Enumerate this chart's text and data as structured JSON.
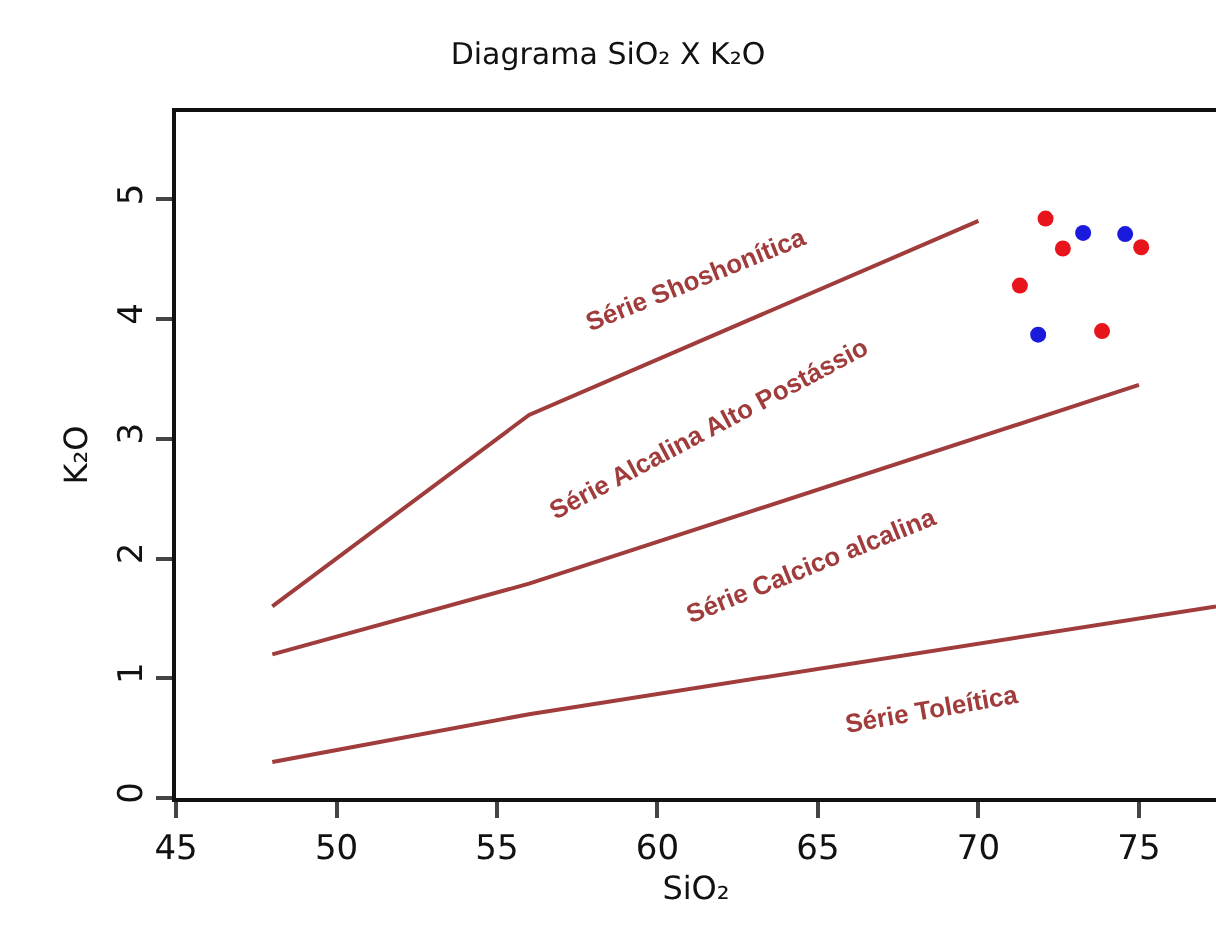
{
  "chart_data": {
    "type": "scatter",
    "title": "Diagrama SiO₂ X K₂O",
    "xlabel": "SiO₂",
    "ylabel": "K₂O",
    "xlim": [
      45,
      77.4
    ],
    "ylim": [
      0,
      5.73
    ],
    "xticks": [
      45,
      50,
      55,
      60,
      65,
      70,
      75
    ],
    "yticks": [
      0,
      1,
      2,
      3,
      4,
      5
    ],
    "grid": false,
    "legend": false,
    "series": [
      {
        "type": "line",
        "color": "#a03c3c",
        "x": [
          48,
          56,
          70
        ],
        "values": [
          1.6,
          3.2,
          4.82
        ]
      },
      {
        "type": "line",
        "color": "#a03c3c",
        "x": [
          48,
          56,
          75
        ],
        "values": [
          1.2,
          1.79,
          3.45
        ]
      },
      {
        "type": "line",
        "color": "#a03c3c",
        "x": [
          48,
          56,
          77.4
        ],
        "values": [
          0.3,
          0.7,
          1.6
        ]
      },
      {
        "marker": "circle",
        "color": "#e8141c",
        "x": [
          72.09,
          72.63,
          75.07,
          71.29,
          73.85
        ],
        "values": [
          4.84,
          4.59,
          4.6,
          4.28,
          3.9
        ]
      },
      {
        "marker": "circle",
        "color": "#1a1adc",
        "x": [
          73.26,
          74.57,
          71.86
        ],
        "values": [
          4.72,
          4.71,
          3.87
        ]
      }
    ],
    "annotations": [
      "Série Shoshonítica",
      "Série Alcalina Alto Postássio",
      "Série Calcico alcalina",
      "Série Toleítica"
    ]
  }
}
